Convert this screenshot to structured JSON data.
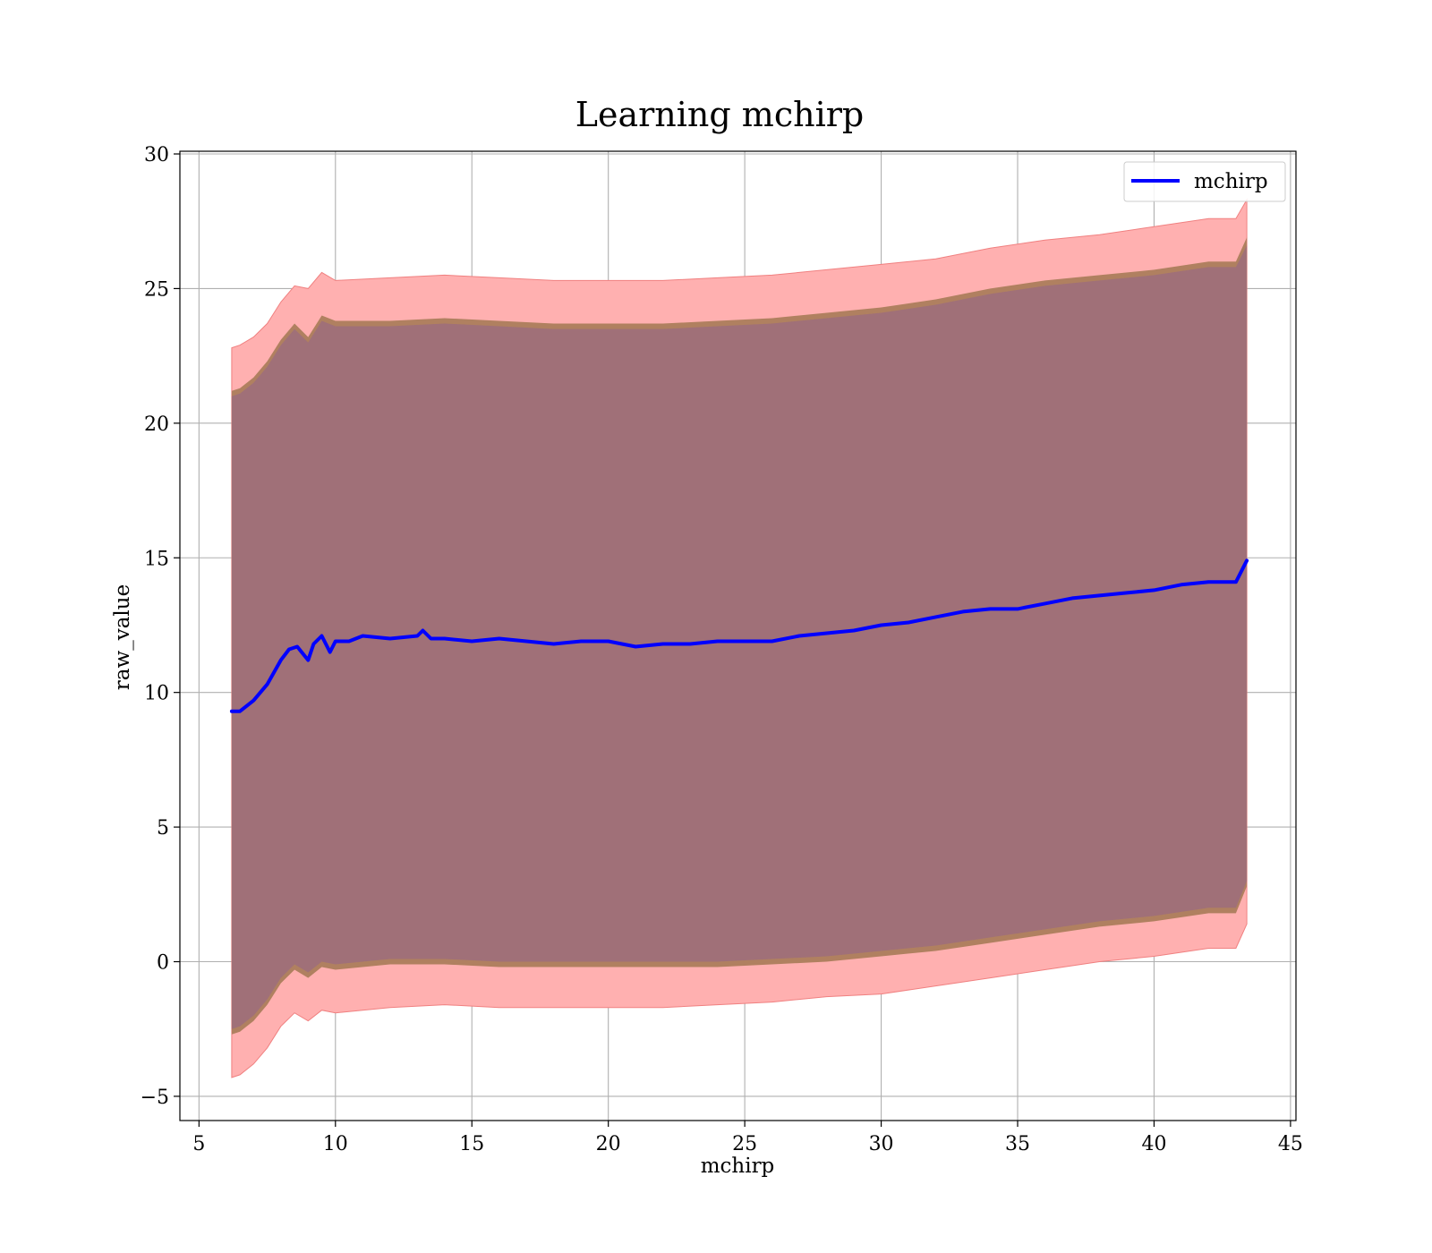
{
  "colors": {
    "line": "#0000ff",
    "band_outer": "#ffb0b0",
    "band_outer_edge": "#f08080",
    "band_mid": "#b08060",
    "band_inner": "#a07078",
    "grid": "#b0b0b0"
  },
  "chart_data": {
    "type": "line",
    "title": "Learning mchirp",
    "xlabel": "mchirp",
    "ylabel": "raw_value",
    "xlim": [
      4.3,
      45.2
    ],
    "ylim": [
      -5.9,
      30.1
    ],
    "xticks": [
      5,
      10,
      15,
      20,
      25,
      30,
      35,
      40,
      45
    ],
    "xtick_labels": [
      "5",
      "10",
      "15",
      "20",
      "25",
      "30",
      "35",
      "40",
      "45"
    ],
    "yticks": [
      -5,
      0,
      5,
      10,
      15,
      20,
      25,
      30
    ],
    "ytick_labels": [
      "−5",
      "0",
      "5",
      "10",
      "15",
      "20",
      "25",
      "30"
    ],
    "grid": true,
    "legend_position": "top-right",
    "series": [
      {
        "name": "mchirp",
        "x": [
          6.2,
          6.5,
          7.0,
          7.5,
          8.0,
          8.3,
          8.6,
          9.0,
          9.2,
          9.5,
          9.8,
          10.0,
          10.5,
          11.0,
          12.0,
          13.0,
          13.2,
          13.5,
          14.0,
          15.0,
          16.0,
          17.0,
          18.0,
          19.0,
          20.0,
          21.0,
          22.0,
          23.0,
          24.0,
          25.0,
          26.0,
          27.0,
          28.0,
          29.0,
          30.0,
          31.0,
          32.0,
          33.0,
          34.0,
          35.0,
          36.0,
          37.0,
          38.0,
          39.0,
          40.0,
          41.0,
          42.0,
          43.0,
          43.4
        ],
        "values": [
          9.3,
          9.3,
          9.7,
          10.3,
          11.2,
          11.6,
          11.7,
          11.2,
          11.8,
          12.1,
          11.5,
          11.9,
          11.9,
          12.1,
          12.0,
          12.1,
          12.3,
          12.0,
          12.0,
          11.9,
          12.0,
          11.9,
          11.8,
          11.9,
          11.9,
          11.7,
          11.8,
          11.8,
          11.9,
          11.9,
          11.9,
          12.1,
          12.2,
          12.3,
          12.5,
          12.6,
          12.8,
          13.0,
          13.1,
          13.1,
          13.3,
          13.5,
          13.6,
          13.7,
          13.8,
          14.0,
          14.1,
          14.1,
          14.9
        ]
      }
    ],
    "bands": {
      "x": [
        6.2,
        6.5,
        7.0,
        7.5,
        8.0,
        8.5,
        9.0,
        9.5,
        10.0,
        12.0,
        14.0,
        16.0,
        18.0,
        20.0,
        22.0,
        24.0,
        26.0,
        28.0,
        30.0,
        32.0,
        34.0,
        36.0,
        38.0,
        40.0,
        42.0,
        43.0,
        43.4
      ],
      "outer_upper": [
        22.8,
        22.9,
        23.2,
        23.7,
        24.5,
        25.1,
        25.0,
        25.6,
        25.3,
        25.4,
        25.5,
        25.4,
        25.3,
        25.3,
        25.3,
        25.4,
        25.5,
        25.7,
        25.9,
        26.1,
        26.5,
        26.8,
        27.0,
        27.3,
        27.6,
        27.6,
        28.3
      ],
      "mid_upper": [
        21.2,
        21.3,
        21.7,
        22.3,
        23.1,
        23.7,
        23.2,
        24.0,
        23.8,
        23.8,
        23.9,
        23.8,
        23.7,
        23.7,
        23.7,
        23.8,
        23.9,
        24.1,
        24.3,
        24.6,
        25.0,
        25.3,
        25.5,
        25.7,
        26.0,
        26.0,
        26.9
      ],
      "inner_upper": [
        21.0,
        21.1,
        21.5,
        22.1,
        22.9,
        23.5,
        23.0,
        23.8,
        23.6,
        23.6,
        23.7,
        23.6,
        23.5,
        23.5,
        23.5,
        23.6,
        23.7,
        23.9,
        24.1,
        24.4,
        24.8,
        25.1,
        25.3,
        25.5,
        25.8,
        25.8,
        26.6
      ],
      "inner_lower": [
        -2.5,
        -2.4,
        -2.0,
        -1.4,
        -0.6,
        -0.1,
        -0.4,
        0.0,
        -0.1,
        0.1,
        0.1,
        0.0,
        0.0,
        0.0,
        0.0,
        0.0,
        0.1,
        0.2,
        0.4,
        0.6,
        0.9,
        1.2,
        1.5,
        1.7,
        2.0,
        2.0,
        3.0
      ],
      "mid_lower": [
        -2.7,
        -2.6,
        -2.2,
        -1.6,
        -0.8,
        -0.3,
        -0.6,
        -0.2,
        -0.3,
        -0.1,
        -0.1,
        -0.2,
        -0.2,
        -0.2,
        -0.2,
        -0.2,
        -0.1,
        0.0,
        0.2,
        0.4,
        0.7,
        1.0,
        1.3,
        1.5,
        1.8,
        1.8,
        2.8
      ],
      "outer_lower": [
        -4.3,
        -4.2,
        -3.8,
        -3.2,
        -2.4,
        -1.9,
        -2.2,
        -1.8,
        -1.9,
        -1.7,
        -1.6,
        -1.7,
        -1.7,
        -1.7,
        -1.7,
        -1.6,
        -1.5,
        -1.3,
        -1.2,
        -0.9,
        -0.6,
        -0.3,
        0.0,
        0.2,
        0.5,
        0.5,
        1.4
      ]
    }
  }
}
